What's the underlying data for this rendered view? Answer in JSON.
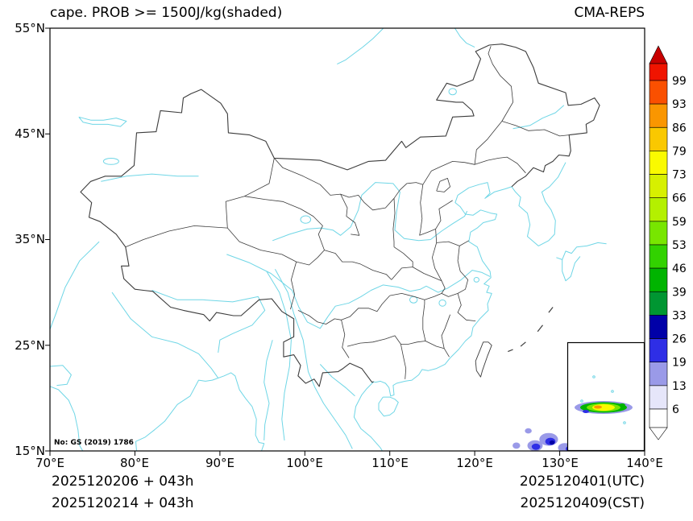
{
  "header": {
    "title": "cape. PROB >= 1500J/kg(shaded)",
    "model": "CMA-REPS"
  },
  "axes": {
    "y_ticks": [
      "55°N",
      "45°N",
      "35°N",
      "25°N",
      "15°N"
    ],
    "x_ticks": [
      "70°E",
      "80°E",
      "90°E",
      "100°E",
      "110°E",
      "120°E",
      "130°E",
      "140°E"
    ]
  },
  "colorbar": {
    "labels": [
      "99",
      "93",
      "86",
      "79",
      "73",
      "66",
      "59",
      "53",
      "46",
      "39",
      "33",
      "26",
      "19",
      "13",
      "6"
    ],
    "colors_top_to_bottom": [
      "#f01400",
      "#fa5000",
      "#fa9600",
      "#fac800",
      "#fafa00",
      "#d7f000",
      "#b4f000",
      "#78e600",
      "#32d200",
      "#00b400",
      "#009632",
      "#0000a8",
      "#2e2ee6",
      "#9a9ae8",
      "#e6e6fa",
      "#ffffff"
    ],
    "over_color": "#c80000",
    "under_color": "#ffffff"
  },
  "footer": {
    "init_utc_line": "2025120206  +  043h",
    "init_cst_line": "2025120214  +  043h",
    "valid_utc": "2025120401(UTC)",
    "valid_cst": "2025120409(CST)"
  },
  "map": {
    "license_note": "No: GS (2019) 1786",
    "border_color": "#3c3c3c",
    "water_color": "#6fd6e6"
  }
}
